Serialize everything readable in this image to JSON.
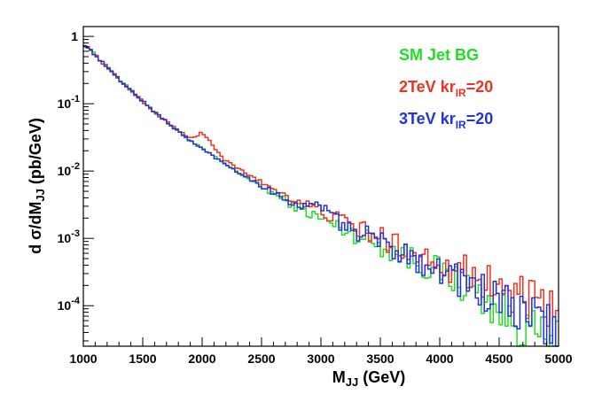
{
  "chart_data": {
    "type": "line",
    "title": "",
    "xlabel": "M",
    "xlabel_sub": "JJ",
    "xlabel_suffix": " (GeV)",
    "ylabel_prefix": "d σ/dM",
    "ylabel_sub": "JJ",
    "ylabel_suffix": " (pb/GeV)",
    "xlim": [
      1000,
      5000
    ],
    "ylim": [
      2.5e-05,
      1.4
    ],
    "yscale": "log",
    "grid": false,
    "legend_position": "top-right",
    "x_ticks": [
      "1000",
      "1500",
      "2000",
      "2500",
      "3000",
      "3500",
      "4000",
      "4500",
      "5000"
    ],
    "y_ticks": [
      {
        "base": "1",
        "exp": ""
      },
      {
        "base": "10",
        "exp": "-1"
      },
      {
        "base": "10",
        "exp": "-2"
      },
      {
        "base": "10",
        "exp": "-3"
      },
      {
        "base": "10",
        "exp": "-4"
      }
    ],
    "series": [
      {
        "name": "SM Jet BG",
        "color": "#22dd22",
        "x": [
          1000,
          1300,
          1600,
          1900,
          2200,
          2500,
          2800,
          3100,
          3400,
          3700,
          4000,
          4300,
          4600,
          4900,
          5000
        ],
        "y": [
          0.8,
          0.23,
          0.075,
          0.028,
          0.0125,
          0.0058,
          0.0029,
          0.0016,
          0.00095,
          0.00055,
          0.00032,
          0.00016,
          6e-05,
          3e-05,
          2.5e-05
        ]
      },
      {
        "name": "2TeV kr",
        "name_sub": "IR",
        "name_suffix": "=20",
        "color": "#ee3322",
        "x": [
          1000,
          1300,
          1600,
          1800,
          1900,
          1950,
          2000,
          2050,
          2100,
          2200,
          2500,
          2800,
          3100,
          3400,
          3700,
          4000,
          4300,
          4600,
          4900,
          5000
        ],
        "y": [
          0.8,
          0.23,
          0.075,
          0.04,
          0.03,
          0.033,
          0.038,
          0.03,
          0.022,
          0.014,
          0.0068,
          0.0036,
          0.0021,
          0.0012,
          0.00072,
          0.00045,
          0.00028,
          0.00015,
          9e-05,
          7e-05
        ]
      },
      {
        "name": "3TeV kr",
        "name_sub": "IR",
        "name_suffix": "=20",
        "color": "#2233dd",
        "x": [
          1000,
          1300,
          1600,
          1900,
          2200,
          2500,
          2800,
          2900,
          2950,
          3000,
          3050,
          3100,
          3400,
          3700,
          4000,
          4300,
          4600,
          4900,
          5000
        ],
        "y": [
          0.8,
          0.23,
          0.075,
          0.028,
          0.0125,
          0.006,
          0.0031,
          0.0028,
          0.0031,
          0.0033,
          0.0027,
          0.0019,
          0.00105,
          0.00062,
          0.00035,
          0.00018,
          9e-05,
          5e-05,
          4e-05
        ]
      }
    ]
  }
}
